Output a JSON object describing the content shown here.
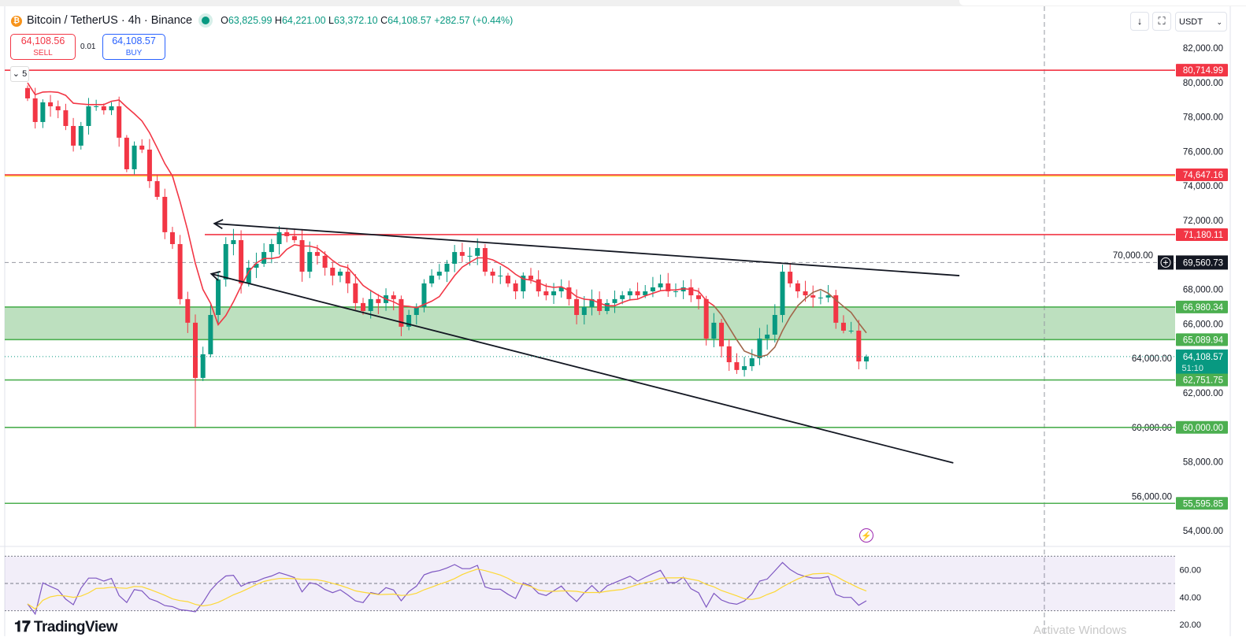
{
  "header": {
    "symbol": "Bitcoin / TetherUS · 4h · Binance",
    "coin_icon": "bitcoin-icon",
    "market_status": "open",
    "open_label": "O",
    "open": "63,825.99",
    "high_label": "H",
    "high": "64,221.00",
    "low_label": "L",
    "low": "63,372.10",
    "close_label": "C",
    "close": "64,108.57",
    "change": "+282.57 (+0.44%)"
  },
  "trade": {
    "sell_price": "64,108.56",
    "sell_label": "SELL",
    "lot": "0.01",
    "buy_price": "64,108.57",
    "buy_label": "BUY",
    "indicators_collapsed_count": "5"
  },
  "toolbar": {
    "scroll_icon": "arrow-down-icon",
    "fullscreen_icon": "fullscreen-icon",
    "currency": "USDT"
  },
  "watermark": "TradingView",
  "os_watermark": "Activate Windows",
  "colors": {
    "up": "#089981",
    "down": "#f23645",
    "resistance": "#f23645",
    "support": "#4caf50",
    "zone": "#b2dbb4",
    "ma": "#f23645",
    "rsi": "#7e57c2",
    "rsi_ma": "#fdd835"
  },
  "chart_data": {
    "type": "candlestick",
    "interval": "4h",
    "price_axis": {
      "min": 53000,
      "max": 83000,
      "ticks": [
        "82,000.00",
        "80,000.00",
        "78,000.00",
        "76,000.00",
        "74,000.00",
        "72,000.00",
        "70,000.00",
        "68,000.00",
        "66,000.00",
        "64,000.00",
        "62,000.00",
        "60,000.00",
        "58,000.00",
        "56,000.00",
        "54,000.00"
      ]
    },
    "closes": [
      79080,
      77710,
      78850,
      78620,
      78390,
      77480,
      76340,
      77480,
      78620,
      78620,
      78390,
      78620,
      76800,
      74970,
      76340,
      76110,
      74280,
      73370,
      71320,
      70630,
      67440,
      66070,
      62870,
      64240,
      66520,
      68580,
      70630,
      70860,
      68350,
      69260,
      69490,
      70170,
      70630,
      71320,
      71090,
      70860,
      69030,
      70170,
      69950,
      69260,
      68800,
      69030,
      68350,
      67210,
      66750,
      67440,
      67210,
      67660,
      67440,
      65840,
      66520,
      66980,
      68350,
      68800,
      69030,
      69490,
      70170,
      69950,
      69950,
      70400,
      69030,
      68800,
      68800,
      68350,
      67890,
      68800,
      68580,
      67890,
      67660,
      67890,
      68120,
      67440,
      66520,
      66980,
      67440,
      66750,
      67210,
      67440,
      67660,
      67890,
      67660,
      67890,
      68120,
      68350,
      67890,
      67890,
      68120,
      67660,
      67440,
      65150,
      66070,
      64700,
      63780,
      63330,
      63550,
      64010,
      65150,
      65380,
      66520,
      69030,
      68350,
      67890,
      67660,
      67530,
      67530,
      67660,
      66070,
      65610,
      65610,
      63825.99,
      64108.57
    ],
    "last": {
      "open": 63825.99,
      "high": 64221.0,
      "low": 63372.1,
      "close": 64108.57
    },
    "levels": [
      {
        "price": 80714.99,
        "label": "80,714.99",
        "kind": "resistance"
      },
      {
        "price": 74647.16,
        "label": "74,647.16",
        "kind": "resistance"
      },
      {
        "price": 71180.11,
        "label": "71,180.11",
        "kind": "resistance"
      },
      {
        "price": 66980.34,
        "label": "66,980.34",
        "kind": "support"
      },
      {
        "price": 65089.94,
        "label": "65,089.94",
        "kind": "support"
      },
      {
        "price": 62751.75,
        "label": "62,751.75",
        "kind": "support"
      },
      {
        "price": 60000.0,
        "label": "60,000.00",
        "kind": "support"
      },
      {
        "price": 55595.85,
        "label": "55,595.85",
        "kind": "support"
      }
    ],
    "zone": {
      "from": 65089.94,
      "to": 66980.34
    },
    "trendlines": [
      {
        "from_bar": 24.5,
        "from_price": 71820,
        "to_bar": 122.2,
        "to_price": 68800
      },
      {
        "from_bar": 24.1,
        "from_price": 68900,
        "to_bar": 121.4,
        "to_price": 57940
      }
    ],
    "crosshair": {
      "price": 69560.73,
      "label": "69,560.73"
    },
    "current_price": {
      "label": "64,108.57",
      "countdown": "51:10"
    },
    "rsi": {
      "axis_ticks": [
        "60.00",
        "40.00",
        "20.00"
      ],
      "upper_band": 70,
      "middle": 50,
      "lower_band": 30
    }
  }
}
